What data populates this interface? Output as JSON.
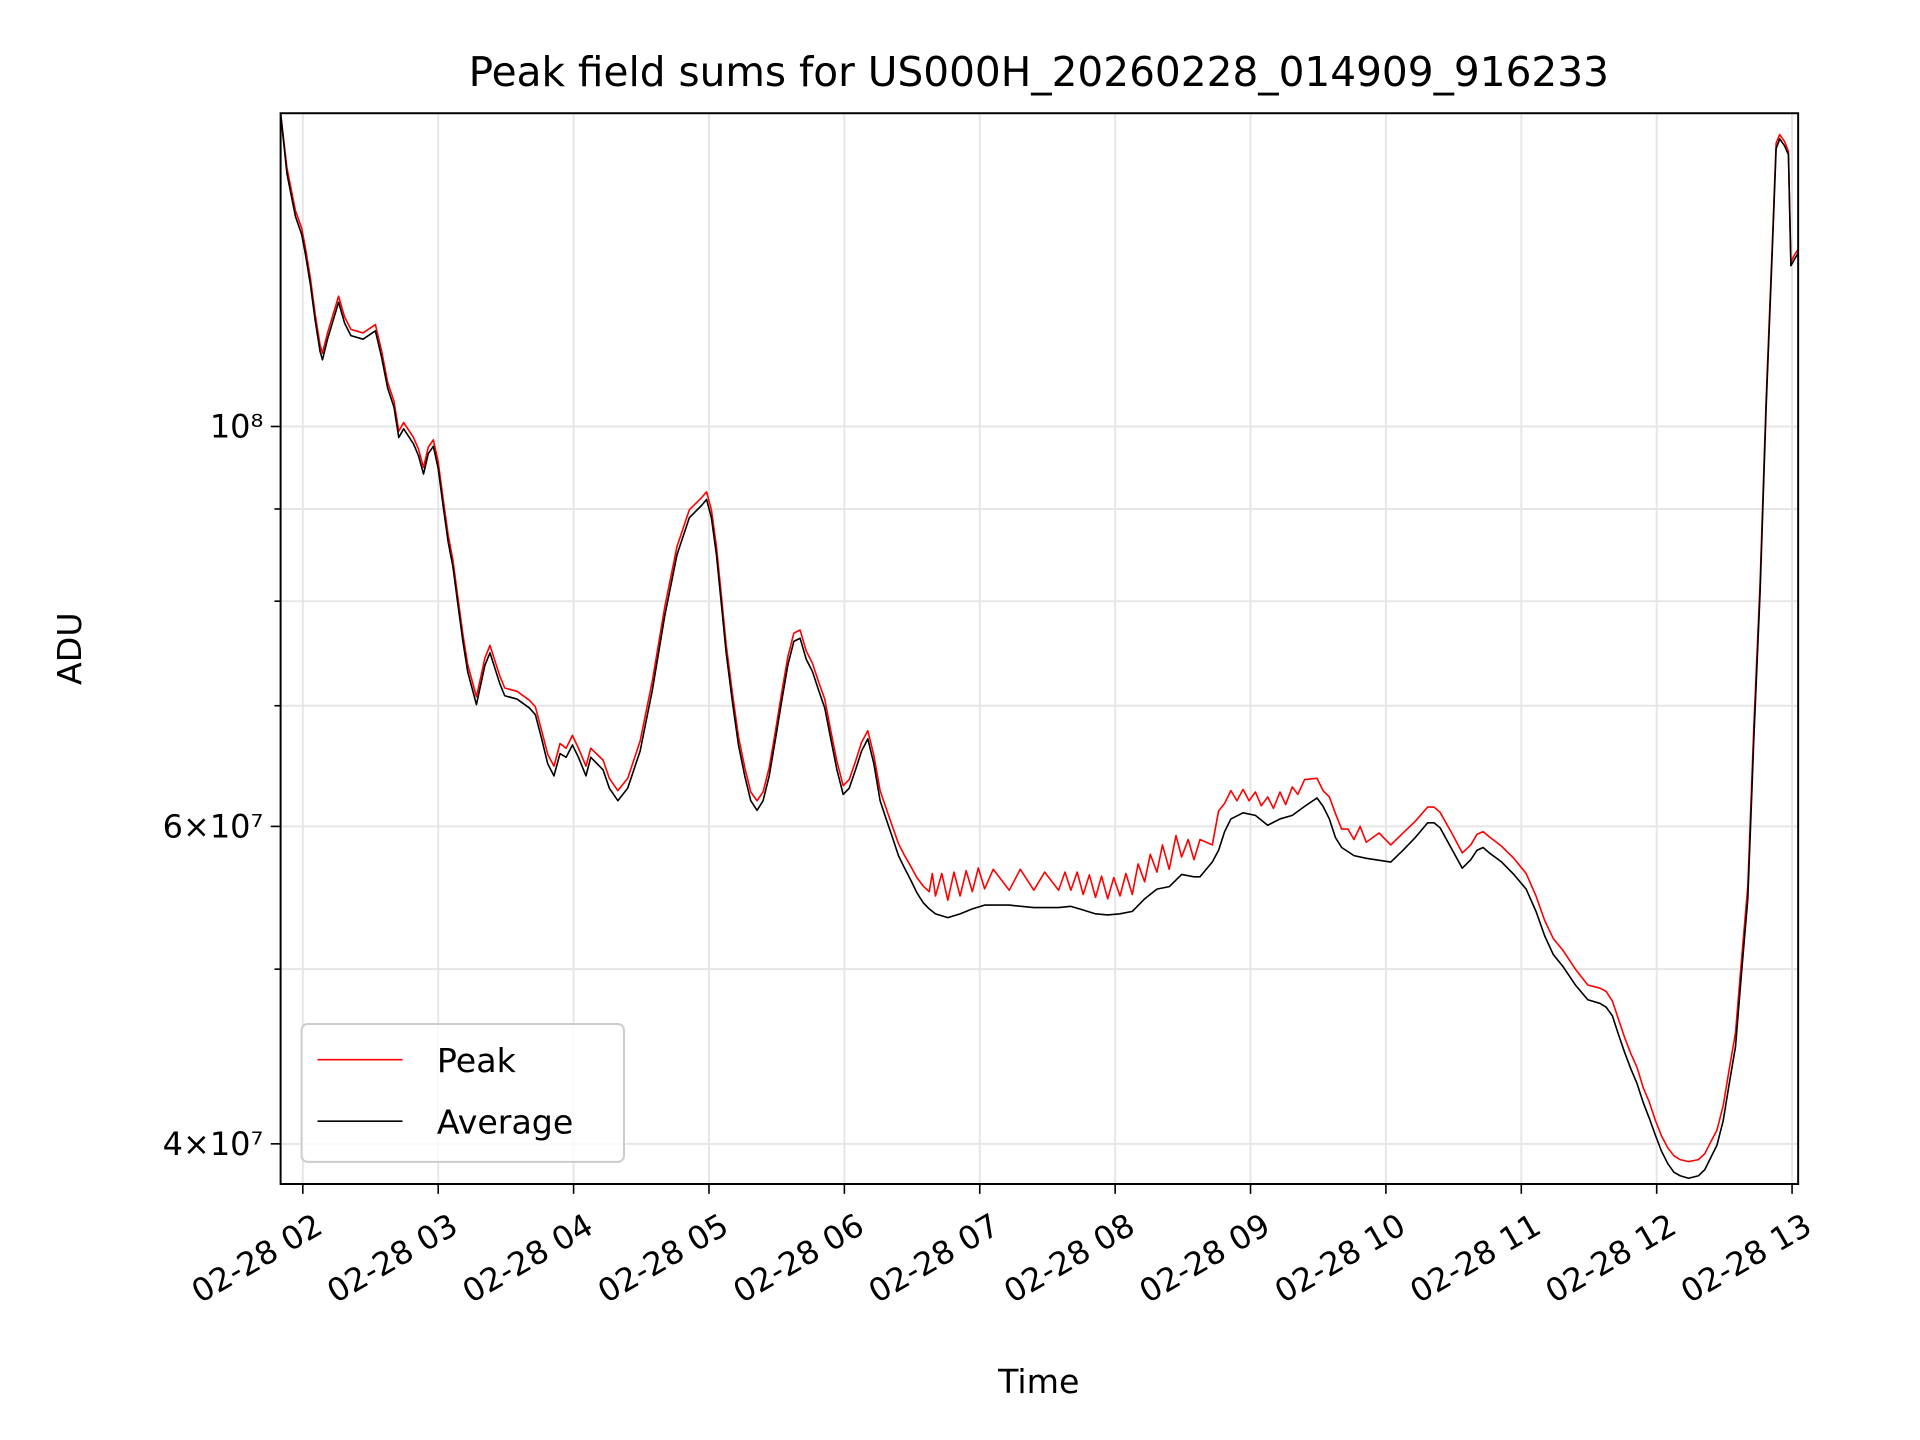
{
  "chart_data": {
    "type": "line",
    "title": "Peak field sums for US000H_20260228_014909_916233",
    "xlabel": "Time",
    "ylabel": "ADU",
    "x_unit": "hours since 02-28 00:00",
    "xlim": [
      1.836,
      13.045
    ],
    "ylim": [
      38000000.0,
      149200000.0
    ],
    "yscale": "log",
    "grid": true,
    "legend_position": "lower-left",
    "x_ticks": [
      {
        "value": 2,
        "label": "02-28 02"
      },
      {
        "value": 3,
        "label": "02-28 03"
      },
      {
        "value": 4,
        "label": "02-28 04"
      },
      {
        "value": 5,
        "label": "02-28 05"
      },
      {
        "value": 6,
        "label": "02-28 06"
      },
      {
        "value": 7,
        "label": "02-28 07"
      },
      {
        "value": 8,
        "label": "02-28 08"
      },
      {
        "value": 9,
        "label": "02-28 09"
      },
      {
        "value": 10,
        "label": "02-28 10"
      },
      {
        "value": 11,
        "label": "02-28 11"
      },
      {
        "value": 12,
        "label": "02-28 12"
      },
      {
        "value": 13,
        "label": "02-28 13"
      }
    ],
    "y_ticks_major": [
      {
        "value": 100000000.0,
        "label": "10⁸"
      },
      {
        "value": 60000000.0,
        "label": "6×10⁷"
      },
      {
        "value": 40000000.0,
        "label": "4×10⁷"
      }
    ],
    "y_ticks_minor": [
      50000000.0,
      70000000.0,
      80000000.0,
      90000000.0
    ],
    "series": [
      {
        "name": "Peak",
        "color": "#ff0000",
        "x": [
          1.836,
          1.882,
          1.909,
          1.945,
          1.991,
          2.018,
          2.055,
          2.091,
          2.127,
          2.145,
          2.182,
          2.218,
          2.264,
          2.309,
          2.355,
          2.445,
          2.536,
          2.582,
          2.627,
          2.673,
          2.709,
          2.745,
          2.818,
          2.855,
          2.891,
          2.927,
          2.964,
          3.0,
          3.036,
          3.073,
          3.109,
          3.145,
          3.182,
          3.218,
          3.282,
          3.345,
          3.382,
          3.455,
          3.491,
          3.582,
          3.673,
          3.718,
          3.764,
          3.809,
          3.855,
          3.9,
          3.945,
          3.991,
          4.036,
          4.091,
          4.127,
          4.218,
          4.264,
          4.327,
          4.4,
          4.491,
          4.582,
          4.673,
          4.764,
          4.855,
          4.945,
          4.982,
          5.018,
          5.055,
          5.091,
          5.127,
          5.173,
          5.218,
          5.264,
          5.309,
          5.355,
          5.4,
          5.445,
          5.491,
          5.536,
          5.582,
          5.627,
          5.673,
          5.718,
          5.764,
          5.809,
          5.855,
          5.9,
          5.945,
          5.991,
          6.036,
          6.082,
          6.127,
          6.173,
          6.218,
          6.264,
          6.309,
          6.355,
          6.4,
          6.445,
          6.491,
          6.536,
          6.582,
          6.627,
          6.65,
          6.673,
          6.72,
          6.764,
          6.81,
          6.855,
          6.9,
          6.945,
          6.99,
          7.036,
          7.1,
          7.218,
          7.3,
          7.4,
          7.48,
          7.582,
          7.63,
          7.673,
          7.72,
          7.764,
          7.81,
          7.855,
          7.9,
          7.945,
          7.99,
          8.036,
          8.08,
          8.127,
          8.17,
          8.218,
          8.26,
          8.309,
          8.35,
          8.4,
          8.45,
          8.491,
          8.54,
          8.582,
          8.627,
          8.718,
          8.764,
          8.809,
          8.855,
          8.9,
          8.945,
          8.99,
          9.036,
          9.08,
          9.127,
          9.17,
          9.218,
          9.26,
          9.309,
          9.35,
          9.4,
          9.491,
          9.536,
          9.582,
          9.627,
          9.673,
          9.72,
          9.764,
          9.81,
          9.855,
          9.95,
          10.036,
          10.127,
          10.218,
          10.309,
          10.355,
          10.4,
          10.491,
          10.564,
          10.627,
          10.673,
          10.718,
          10.764,
          10.855,
          10.945,
          11.036,
          11.109,
          11.173,
          11.236,
          11.309,
          11.4,
          11.491,
          11.582,
          11.627,
          11.673,
          11.718,
          11.764,
          11.809,
          11.855,
          11.9,
          11.945,
          11.991,
          12.036,
          12.082,
          12.127,
          12.173,
          12.236,
          12.309,
          12.355,
          12.4,
          12.445,
          12.491,
          12.536,
          12.582,
          12.627,
          12.673,
          12.718,
          12.764,
          12.809,
          12.855,
          12.882,
          12.909,
          12.945,
          12.973,
          12.991,
          13.018,
          13.045
        ],
        "values": [
          149200000.0,
          139200000.0,
          136000000.0,
          131800000.0,
          128800000.0,
          125800000.0,
          121000000.0,
          115400000.0,
          111000000.0,
          109800000.0,
          112700000.0,
          115000000.0,
          118100000.0,
          115000000.0,
          113200000.0,
          112700000.0,
          113900000.0,
          110100000.0,
          105800000.0,
          103300000.0,
          99400000.0,
          100500000.0,
          98600000.0,
          97100000.0,
          94900000.0,
          97400000.0,
          98300000.0,
          95600000.0,
          91200000.0,
          87100000.0,
          84300000.0,
          80400000.0,
          76700000.0,
          73800000.0,
          70800000.0,
          74400000.0,
          75600000.0,
          72700000.0,
          71600000.0,
          71300000.0,
          70500000.0,
          69900000.0,
          67800000.0,
          65800000.0,
          64800000.0,
          66700000.0,
          66300000.0,
          67400000.0,
          66300000.0,
          64800000.0,
          66300000.0,
          65300000.0,
          63800000.0,
          62800000.0,
          63800000.0,
          66900000.0,
          72300000.0,
          79400000.0,
          85800000.0,
          89900000.0,
          91300000.0,
          92000000.0,
          89900000.0,
          85800000.0,
          80600000.0,
          75700000.0,
          71100000.0,
          67300000.0,
          64700000.0,
          62700000.0,
          62000000.0,
          62700000.0,
          64700000.0,
          67800000.0,
          71100000.0,
          74500000.0,
          76800000.0,
          77100000.0,
          75100000.0,
          73900000.0,
          72200000.0,
          70600000.0,
          67800000.0,
          65200000.0,
          63200000.0,
          63700000.0,
          65200000.0,
          66800000.0,
          67800000.0,
          65700000.0,
          62800000.0,
          61400000.0,
          60000000.0,
          58700000.0,
          57800000.0,
          57000000.0,
          56200000.0,
          55600000.0,
          55200000.0,
          56500000.0,
          54900000.0,
          56500000.0,
          54600000.0,
          56600000.0,
          54900000.0,
          56700000.0,
          55200000.0,
          56900000.0,
          55400000.0,
          56800000.0,
          55300000.0,
          56800000.0,
          55300000.0,
          56600000.0,
          55300000.0,
          56600000.0,
          55300000.0,
          56600000.0,
          55000000.0,
          56400000.0,
          54800000.0,
          56300000.0,
          54700000.0,
          56200000.0,
          54900000.0,
          56500000.0,
          55000000.0,
          57200000.0,
          55900000.0,
          57900000.0,
          56600000.0,
          58600000.0,
          56800000.0,
          59300000.0,
          57700000.0,
          59000000.0,
          57500000.0,
          59000000.0,
          58600000.0,
          61200000.0,
          61800000.0,
          62800000.0,
          62000000.0,
          62900000.0,
          62000000.0,
          62700000.0,
          61600000.0,
          62300000.0,
          61400000.0,
          62700000.0,
          61700000.0,
          63100000.0,
          62500000.0,
          63700000.0,
          63800000.0,
          62800000.0,
          62300000.0,
          61000000.0,
          59800000.0,
          59800000.0,
          59000000.0,
          60000000.0,
          58800000.0,
          59500000.0,
          58600000.0,
          59500000.0,
          60400000.0,
          61500000.0,
          61500000.0,
          61100000.0,
          59400000.0,
          58000000.0,
          58600000.0,
          59400000.0,
          59600000.0,
          59200000.0,
          58500000.0,
          57600000.0,
          56500000.0,
          54900000.0,
          53200000.0,
          52000000.0,
          51200000.0,
          50000000.0,
          49000000.0,
          48800000.0,
          48600000.0,
          48000000.0,
          46900000.0,
          45800000.0,
          44900000.0,
          44100000.0,
          43000000.0,
          42200000.0,
          41200000.0,
          40400000.0,
          39800000.0,
          39400000.0,
          39200000.0,
          39100000.0,
          39200000.0,
          39500000.0,
          40100000.0,
          40700000.0,
          42000000.0,
          44000000.0,
          46100000.0,
          50600000.0,
          55600000.0,
          68200000.0,
          82000000.0,
          103600000.0,
          126800000.0,
          143600000.0,
          145200000.0,
          143900000.0,
          142100000.0,
          123400000.0,
          124500000.0,
          125400000.0
        ]
      },
      {
        "name": "Average",
        "color": "#000000",
        "x": [
          1.836,
          1.882,
          1.909,
          1.945,
          1.991,
          2.018,
          2.055,
          2.091,
          2.127,
          2.145,
          2.182,
          2.218,
          2.264,
          2.309,
          2.355,
          2.445,
          2.536,
          2.582,
          2.627,
          2.673,
          2.709,
          2.745,
          2.818,
          2.855,
          2.891,
          2.927,
          2.964,
          3.0,
          3.036,
          3.073,
          3.109,
          3.145,
          3.182,
          3.218,
          3.282,
          3.345,
          3.382,
          3.455,
          3.491,
          3.582,
          3.673,
          3.718,
          3.764,
          3.809,
          3.855,
          3.9,
          3.945,
          3.991,
          4.036,
          4.091,
          4.127,
          4.218,
          4.264,
          4.327,
          4.4,
          4.491,
          4.582,
          4.673,
          4.764,
          4.855,
          4.945,
          4.982,
          5.018,
          5.055,
          5.091,
          5.127,
          5.173,
          5.218,
          5.264,
          5.309,
          5.355,
          5.4,
          5.445,
          5.491,
          5.536,
          5.582,
          5.627,
          5.673,
          5.718,
          5.764,
          5.809,
          5.855,
          5.9,
          5.945,
          5.991,
          6.036,
          6.082,
          6.127,
          6.173,
          6.218,
          6.264,
          6.309,
          6.355,
          6.4,
          6.445,
          6.491,
          6.536,
          6.582,
          6.627,
          6.673,
          6.764,
          6.855,
          6.945,
          7.036,
          7.218,
          7.4,
          7.582,
          7.673,
          7.764,
          7.855,
          7.945,
          8.036,
          8.127,
          8.218,
          8.309,
          8.4,
          8.491,
          8.582,
          8.627,
          8.718,
          8.764,
          8.809,
          8.855,
          8.945,
          9.036,
          9.127,
          9.218,
          9.309,
          9.4,
          9.491,
          9.536,
          9.582,
          9.627,
          9.673,
          9.764,
          9.855,
          10.036,
          10.127,
          10.218,
          10.309,
          10.355,
          10.4,
          10.491,
          10.564,
          10.627,
          10.673,
          10.718,
          10.764,
          10.855,
          10.945,
          11.036,
          11.109,
          11.173,
          11.236,
          11.309,
          11.4,
          11.491,
          11.582,
          11.627,
          11.673,
          11.718,
          11.764,
          11.809,
          11.855,
          11.9,
          11.945,
          11.991,
          12.036,
          12.082,
          12.127,
          12.173,
          12.236,
          12.309,
          12.355,
          12.4,
          12.445,
          12.491,
          12.536,
          12.582,
          12.627,
          12.673,
          12.718,
          12.764,
          12.809,
          12.855,
          12.882,
          12.909,
          12.945,
          12.973,
          12.991,
          13.018,
          13.045
        ],
        "values": [
          149200000.0,
          138200000.0,
          135000000.0,
          130800000.0,
          127800000.0,
          124800000.0,
          120000000.0,
          114500000.0,
          110100000.0,
          108900000.0,
          111800000.0,
          114100000.0,
          117200000.0,
          114100000.0,
          112300000.0,
          111800000.0,
          113000000.0,
          109200000.0,
          105000000.0,
          102500000.0,
          98600000.0,
          99700000.0,
          97800000.0,
          96300000.0,
          94100000.0,
          96600000.0,
          97500000.0,
          94800000.0,
          90400000.0,
          86300000.0,
          83600000.0,
          79700000.0,
          76000000.0,
          73100000.0,
          70100000.0,
          73700000.0,
          74900000.0,
          72000000.0,
          70900000.0,
          70600000.0,
          69800000.0,
          69200000.0,
          67100000.0,
          65000000.0,
          64000000.0,
          65850000.0,
          65540000.0,
          66580000.0,
          65540000.0,
          64000000.0,
          65540000.0,
          64500000.0,
          63000000.0,
          62000000.0,
          63000000.0,
          66050000.0,
          71450000.0,
          78500000.0,
          84900000.0,
          89000000.0,
          90400000.0,
          91100000.0,
          89000000.0,
          84900000.0,
          79700000.0,
          74900000.0,
          70330000.0,
          66580000.0,
          64000000.0,
          62000000.0,
          61240000.0,
          62000000.0,
          64000000.0,
          67100000.0,
          70330000.0,
          73700000.0,
          76000000.0,
          76300000.0,
          74300000.0,
          73130000.0,
          71450000.0,
          69800000.0,
          67100000.0,
          64500000.0,
          62500000.0,
          63000000.0,
          64500000.0,
          66050000.0,
          67100000.0,
          65000000.0,
          62000000.0,
          60570000.0,
          59160000.0,
          57800000.0,
          56880000.0,
          56000000.0,
          55120000.0,
          54430000.0,
          54000000.0,
          53660000.0,
          53400000.0,
          53660000.0,
          54000000.0,
          54260000.0,
          54260000.0,
          54090000.0,
          54090000.0,
          54180000.0,
          53920000.0,
          53660000.0,
          53580000.0,
          53660000.0,
          53830000.0,
          54700000.0,
          55380000.0,
          55560000.0,
          56430000.0,
          56260000.0,
          56260000.0,
          57330000.0,
          58200000.0,
          59600000.0,
          60570000.0,
          61050000.0,
          60850000.0,
          60090000.0,
          60570000.0,
          60850000.0,
          61550000.0,
          62220000.0,
          61550000.0,
          60570000.0,
          59160000.0,
          58400000.0,
          57800000.0,
          57600000.0,
          57330000.0,
          58200000.0,
          59160000.0,
          60280000.0,
          60280000.0,
          59900000.0,
          58200000.0,
          56880000.0,
          57500000.0,
          58200000.0,
          58400000.0,
          58000000.0,
          57330000.0,
          56430000.0,
          55380000.0,
          53830000.0,
          52160000.0,
          50950000.0,
          50160000.0,
          49000000.0,
          48080000.0,
          47860000.0,
          47630000.0,
          47100000.0,
          46000000.0,
          44940000.0,
          44030000.0,
          43200000.0,
          42190000.0,
          41340000.0,
          40430000.0,
          39620000.0,
          39000000.0,
          38580000.0,
          38400000.0,
          38280000.0,
          38400000.0,
          38700000.0,
          39300000.0,
          39930000.0,
          41200000.0,
          43200000.0,
          45290000.0,
          49770000.0,
          54700000.0,
          67100000.0,
          81000000.0,
          102500000.0,
          125800000.0,
          142600000.0,
          144400000.0,
          143100000.0,
          141500000.0,
          122800000.0,
          123800000.0,
          124800000.0
        ]
      }
    ]
  }
}
